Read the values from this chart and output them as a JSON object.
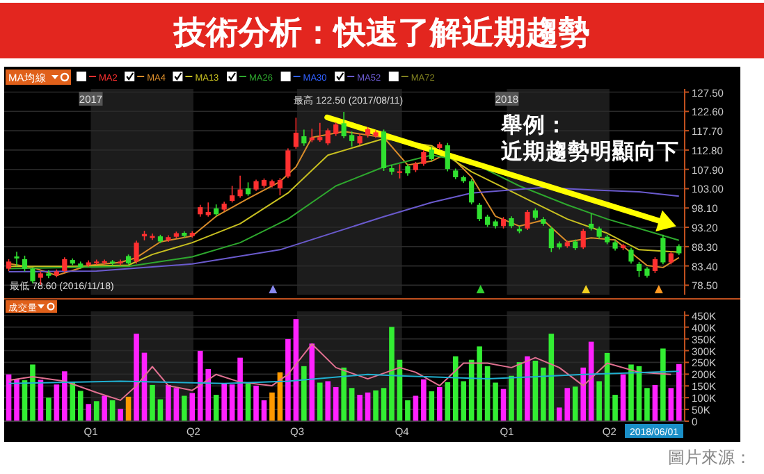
{
  "chart_data": [
    {
      "type": "candlestick",
      "title": "技術分析：快速了解近期趨勢",
      "legend": "top left",
      "grid": "y",
      "tick_labels": "y",
      "xlim": [
        "2016-10-17",
        "2018-06-06"
      ],
      "ylim": [
        76.1,
        128.3
      ],
      "yticks": [
        {
          "value": 127.5,
          "label": "127.50"
        },
        {
          "value": 122.6,
          "label": "122.60"
        },
        {
          "value": 117.7,
          "label": "117.70"
        },
        {
          "value": 112.8,
          "label": "112.80"
        },
        {
          "value": 107.9,
          "label": "107.90"
        },
        {
          "value": 103,
          "label": "103.00"
        },
        {
          "value": 98.1,
          "label": "98.10"
        },
        {
          "value": 93.2,
          "label": "93.20"
        },
        {
          "value": 88.3,
          "label": "88.30"
        },
        {
          "value": 83.4,
          "label": "83.40"
        },
        {
          "value": 78.5,
          "label": "78.50"
        }
      ],
      "x2lim": [
        "2016-10-17",
        "2018-06-06"
      ],
      "x2ticks": [
        {
          "value": "2017-01-01",
          "label": "2017"
        },
        {
          "value": "2018-01-01",
          "label": "2018"
        }
      ],
      "bands": [
        {
          "axis": "x",
          "from": "2017-01-01",
          "to": "2017-04-01",
          "color": "#1c1c1c"
        },
        {
          "axis": "x",
          "from": "2017-07-01",
          "to": "2017-10-01",
          "color": "#1c1c1c"
        },
        {
          "axis": "x",
          "from": "2018-01-01",
          "to": "2018-04-01",
          "color": "#1c1c1c"
        }
      ],
      "x": [
        "2016-10-21",
        "2016-10-28",
        "2016-11-04",
        "2016-11-11",
        "2016-11-18",
        "2016-11-25",
        "2016-12-02",
        "2016-12-09",
        "2016-12-16",
        "2016-12-23",
        "2016-12-30",
        "2017-01-06",
        "2017-01-13",
        "2017-01-20",
        "2017-01-27",
        "2017-02-03",
        "2017-02-10",
        "2017-02-17",
        "2017-02-24",
        "2017-03-03",
        "2017-03-10",
        "2017-03-17",
        "2017-03-24",
        "2017-03-31",
        "2017-04-07",
        "2017-04-14",
        "2017-04-21",
        "2017-04-28",
        "2017-05-05",
        "2017-05-12",
        "2017-05-19",
        "2017-05-26",
        "2017-06-02",
        "2017-06-09",
        "2017-06-16",
        "2017-06-23",
        "2017-06-30",
        "2017-07-07",
        "2017-07-14",
        "2017-07-21",
        "2017-07-28",
        "2017-08-04",
        "2017-08-11",
        "2017-08-18",
        "2017-08-25",
        "2017-09-01",
        "2017-09-08",
        "2017-09-15",
        "2017-09-22",
        "2017-09-29",
        "2017-10-06",
        "2017-10-13",
        "2017-10-20",
        "2017-10-27",
        "2017-11-03",
        "2017-11-10",
        "2017-11-17",
        "2017-11-24",
        "2017-12-01",
        "2017-12-08",
        "2017-12-15",
        "2017-12-22",
        "2017-12-29",
        "2018-01-05",
        "2018-01-12",
        "2018-01-19",
        "2018-01-26",
        "2018-02-02",
        "2018-02-09",
        "2018-02-16",
        "2018-02-23",
        "2018-03-02",
        "2018-03-09",
        "2018-03-16",
        "2018-03-23",
        "2018-03-30",
        "2018-04-06",
        "2018-04-13",
        "2018-04-20",
        "2018-04-27",
        "2018-05-04",
        "2018-05-11",
        "2018-05-18",
        "2018-05-25",
        "2018-06-01"
      ],
      "ohlc": [
        [
          82.7,
          85.1,
          82.1,
          84.5
        ],
        [
          85.8,
          87.0,
          83.3,
          85.3
        ],
        [
          85.1,
          86.0,
          82.0,
          82.7
        ],
        [
          82.7,
          83.0,
          79.0,
          79.5
        ],
        [
          80.4,
          82.0,
          78.6,
          81.5
        ],
        [
          81.5,
          82.3,
          80.3,
          80.9
        ],
        [
          81.0,
          82.5,
          80.5,
          82.0
        ],
        [
          82.1,
          85.6,
          81.8,
          85.1
        ],
        [
          84.9,
          85.3,
          83.6,
          84.0
        ],
        [
          84.0,
          84.5,
          82.7,
          83.1
        ],
        [
          83.6,
          84.8,
          83.2,
          84.3
        ],
        [
          84.1,
          85.0,
          83.7,
          84.5
        ],
        [
          84.2,
          85.0,
          83.8,
          84.6
        ],
        [
          84.5,
          84.9,
          83.6,
          84.0
        ],
        [
          84.0,
          85.0,
          83.6,
          84.5
        ],
        [
          85.9,
          86.3,
          83.8,
          84.1
        ],
        [
          84.5,
          89.8,
          84.0,
          89.3
        ],
        [
          90.9,
          92.3,
          89.9,
          91.5
        ],
        [
          90.5,
          91.6,
          90.0,
          91.0
        ],
        [
          90.9,
          91.3,
          89.2,
          89.6
        ],
        [
          89.9,
          91.2,
          89.5,
          90.7
        ],
        [
          90.8,
          92.1,
          90.4,
          91.7
        ],
        [
          91.8,
          92.2,
          90.6,
          91.0
        ],
        [
          91.0,
          92.2,
          90.6,
          91.8
        ],
        [
          96.5,
          98.9,
          95.9,
          98.3
        ],
        [
          96.3,
          99.5,
          95.9,
          97.1
        ],
        [
          98.0,
          99.0,
          96.0,
          96.5
        ],
        [
          97.7,
          99.7,
          97.3,
          99.2
        ],
        [
          99.9,
          103.7,
          99.5,
          101.3
        ],
        [
          101.1,
          106.3,
          100.7,
          102.8
        ],
        [
          103.1,
          104.6,
          101.2,
          101.6
        ],
        [
          102.8,
          105.3,
          102.4,
          104.9
        ],
        [
          103.7,
          105.6,
          103.2,
          105.2
        ],
        [
          103.7,
          105.3,
          103.3,
          104.9
        ],
        [
          103.1,
          105.7,
          101.3,
          105.2
        ],
        [
          106.1,
          113.2,
          105.7,
          112.7
        ],
        [
          113.6,
          121.0,
          113.1,
          117.2
        ],
        [
          116.3,
          118.0,
          113.9,
          114.5
        ],
        [
          115.3,
          118.2,
          114.8,
          116.0
        ],
        [
          115.3,
          119.7,
          114.9,
          116.1
        ],
        [
          114.5,
          118.3,
          114.0,
          117.8
        ],
        [
          116.9,
          119.8,
          116.4,
          119.3
        ],
        [
          119.6,
          122.5,
          115.8,
          116.3
        ],
        [
          116.6,
          117.5,
          113.7,
          115.1
        ],
        [
          114.5,
          117.0,
          114.0,
          116.3
        ],
        [
          116.7,
          118.6,
          116.0,
          118.1
        ],
        [
          116.3,
          117.8,
          115.9,
          117.3
        ],
        [
          117.5,
          118.0,
          107.5,
          108.2
        ],
        [
          108.2,
          109.0,
          106.5,
          107.3
        ],
        [
          107.0,
          109.2,
          105.6,
          107.4
        ],
        [
          108.7,
          109.2,
          106.3,
          106.9
        ],
        [
          107.7,
          109.8,
          107.2,
          109.3
        ],
        [
          109.3,
          112.8,
          108.8,
          112.3
        ],
        [
          112.9,
          113.5,
          110.0,
          110.5
        ],
        [
          113.3,
          114.8,
          112.9,
          114.3
        ],
        [
          114.0,
          114.6,
          107.4,
          108.0
        ],
        [
          107.6,
          108.1,
          105.4,
          105.9
        ],
        [
          105.9,
          106.3,
          104.5,
          104.9
        ],
        [
          104.9,
          105.4,
          99.0,
          99.5
        ],
        [
          98.9,
          99.4,
          94.8,
          95.3
        ],
        [
          95.9,
          96.4,
          93.3,
          93.8
        ],
        [
          94.7,
          95.2,
          92.9,
          93.5
        ],
        [
          93.5,
          95.8,
          92.9,
          95.3
        ],
        [
          95.5,
          96.0,
          93.0,
          93.5
        ],
        [
          92.8,
          93.6,
          91.7,
          92.2
        ],
        [
          92.9,
          97.6,
          92.5,
          97.1
        ],
        [
          97.5,
          98.0,
          95.1,
          95.6
        ],
        [
          95.3,
          95.8,
          93.6,
          94.1
        ],
        [
          92.9,
          93.4,
          86.9,
          87.9
        ],
        [
          89.1,
          89.6,
          87.6,
          88.1
        ],
        [
          88.4,
          89.8,
          88.0,
          89.4
        ],
        [
          89.6,
          90.1,
          87.4,
          87.9
        ],
        [
          88.1,
          92.8,
          87.7,
          92.3
        ],
        [
          94.1,
          96.7,
          92.4,
          92.9
        ],
        [
          92.9,
          93.4,
          90.3,
          90.8
        ],
        [
          90.8,
          91.3,
          88.9,
          89.4
        ],
        [
          89.4,
          89.9,
          87.3,
          87.8
        ],
        [
          87.9,
          89.0,
          87.4,
          88.6
        ],
        [
          87.5,
          88.0,
          84.0,
          84.5
        ],
        [
          83.9,
          84.4,
          80.6,
          82.1
        ],
        [
          82.7,
          83.1,
          80.4,
          80.9
        ],
        [
          82.1,
          85.6,
          81.6,
          85.1
        ],
        [
          90.5,
          91.3,
          83.8,
          84.3
        ],
        [
          84.3,
          87.1,
          83.8,
          86.6
        ],
        [
          88.4,
          88.9,
          86.2,
          86.6
        ]
      ],
      "colors": [
        "#ff3030",
        "#30e030",
        "#30e030",
        "#30e030",
        "#ff3030",
        "#30e030",
        "#ff3030",
        "#ff3030",
        "#30e030",
        "#30e030",
        "#ff3030",
        "#ff3030",
        "#ff3030",
        "#30e030",
        "#ff3030",
        "#30e030",
        "#ff3030",
        "#ff3030",
        "#ff3030",
        "#30e030",
        "#ff3030",
        "#ff3030",
        "#30e030",
        "#ff3030",
        "#ff3030",
        "#ff3030",
        "#30e030",
        "#ff3030",
        "#ff3030",
        "#ff3030",
        "#30e030",
        "#ff3030",
        "#ff3030",
        "#ff3030",
        "#ff3030",
        "#ff3030",
        "#ff3030",
        "#30e030",
        "#ff3030",
        "#ff3030",
        "#ff3030",
        "#ff3030",
        "#30e030",
        "#30e030",
        "#ff3030",
        "#ff3030",
        "#ff3030",
        "#30e030",
        "#30e030",
        "#ff3030",
        "#30e030",
        "#ff3030",
        "#ff3030",
        "#30e030",
        "#ff3030",
        "#30e030",
        "#30e030",
        "#30e030",
        "#30e030",
        "#30e030",
        "#30e030",
        "#30e030",
        "#ff3030",
        "#30e030",
        "#30e030",
        "#ff3030",
        "#30e030",
        "#30e030",
        "#30e030",
        "#30e030",
        "#ff3030",
        "#30e030",
        "#ff3030",
        "#30e030",
        "#30e030",
        "#30e030",
        "#30e030",
        "#ff3030",
        "#30e030",
        "#30e030",
        "#30e030",
        "#ff3030",
        "#30e030",
        "#ff3030",
        "#30e030"
      ],
      "legend_title": "MA均線",
      "series": [
        {
          "type": "line",
          "name": "MA2",
          "color": "#ff3030",
          "values": [
            null,
            null,
            null,
            null,
            null,
            null,
            null,
            null,
            null,
            null,
            null,
            null,
            null,
            null,
            null,
            null,
            null,
            null,
            null,
            null,
            null,
            null,
            null,
            null,
            null,
            null,
            null,
            null,
            null,
            null,
            null,
            null,
            null,
            null,
            null,
            null,
            null,
            null,
            null,
            null,
            null,
            null,
            null,
            null,
            null,
            null,
            null,
            null,
            null,
            null,
            null,
            null,
            null,
            null,
            null,
            null,
            null,
            null,
            null,
            null,
            null,
            null,
            null,
            null,
            null,
            null,
            null,
            null,
            null,
            null,
            null,
            null,
            null,
            null,
            null,
            null,
            null,
            null,
            null,
            null,
            null,
            null,
            null,
            null,
            null
          ]
        },
        {
          "type": "line",
          "name": "MA4",
          "color": "#d98c2a",
          "x": [
            "2016-10-21",
            "2016-11-11",
            "2016-12-02",
            "2016-12-30",
            "2017-01-27",
            "2017-02-10",
            "2017-03-03",
            "2017-03-31",
            "2017-04-21",
            "2017-05-19",
            "2017-06-16",
            "2017-06-30",
            "2017-07-14",
            "2017-08-11",
            "2017-09-15",
            "2017-10-06",
            "2017-10-27",
            "2017-11-10",
            "2017-12-01",
            "2017-12-22",
            "2018-01-12",
            "2018-02-02",
            "2018-02-23",
            "2018-03-16",
            "2018-04-06",
            "2018-05-04",
            "2018-05-18",
            "2018-06-01"
          ],
          "values": [
            84,
            83,
            81,
            83.5,
            84.3,
            85.5,
            89.5,
            91,
            96,
            100.5,
            104.8,
            108.5,
            116,
            117.5,
            116,
            109,
            110,
            112,
            106,
            96,
            93.5,
            95,
            89.5,
            90.5,
            90,
            83.5,
            83,
            85.5
          ]
        },
        {
          "type": "line",
          "name": "MA13",
          "color": "#c8c020",
          "x": [
            "2016-10-21",
            "2016-12-16",
            "2017-02-03",
            "2017-02-24",
            "2017-03-31",
            "2017-05-12",
            "2017-06-23",
            "2017-07-28",
            "2017-09-15",
            "2017-10-27",
            "2017-12-01",
            "2018-01-12",
            "2018-02-23",
            "2018-03-30",
            "2018-04-27",
            "2018-06-01"
          ],
          "values": [
            83.3,
            83.3,
            83.6,
            86.3,
            89.3,
            94.1,
            101.9,
            111.5,
            115.7,
            113.9,
            107.3,
            101.3,
            95.3,
            91.7,
            87.5,
            86.9
          ]
        },
        {
          "type": "line",
          "name": "MA26",
          "color": "#2ea82e",
          "x": [
            "2016-10-21",
            "2017-02-03",
            "2017-03-31",
            "2017-05-12",
            "2017-06-23",
            "2017-08-04",
            "2017-09-15",
            "2017-10-27",
            "2017-12-01",
            "2018-01-12",
            "2018-02-23",
            "2018-03-30",
            "2018-05-11",
            "2018-06-01"
          ],
          "values": [
            82.7,
            83.3,
            85.7,
            89.3,
            95.3,
            103.7,
            108.5,
            111.5,
            109.7,
            103.7,
            98.9,
            95.3,
            91.7,
            89.9
          ]
        },
        {
          "type": "line",
          "name": "MA30",
          "color": "#3060ff",
          "values": [
            null,
            null,
            null,
            null,
            null,
            null,
            null,
            null,
            null,
            null,
            null,
            null,
            null,
            null,
            null,
            null,
            null,
            null,
            null,
            null,
            null,
            null,
            null,
            null,
            null,
            null,
            null,
            null,
            null,
            null,
            null,
            null,
            null,
            null,
            null,
            null,
            null,
            null,
            null,
            null,
            null,
            null,
            null,
            null,
            null,
            null,
            null,
            null,
            null,
            null,
            null,
            null,
            null,
            null,
            null,
            null,
            null,
            null,
            null,
            null,
            null,
            null,
            null,
            null,
            null,
            null,
            null,
            null,
            null,
            null,
            null,
            null,
            null,
            null,
            null,
            null,
            null,
            null,
            null,
            null,
            null,
            null,
            null,
            null,
            null
          ]
        },
        {
          "type": "line",
          "name": "MA52",
          "color": "#6a5acd",
          "x": [
            "2016-10-21",
            "2017-01-06",
            "2017-03-31",
            "2017-06-16",
            "2017-09-15",
            "2017-10-27",
            "2017-12-01",
            "2018-02-02",
            "2018-03-16",
            "2018-04-27",
            "2018-06-01"
          ],
          "values": [
            81.9,
            82.1,
            83.9,
            87.5,
            95.9,
            99.5,
            101.9,
            103.3,
            102.7,
            102.2,
            101.1
          ]
        },
        {
          "type": "line",
          "name": "MA72",
          "color": "#808020",
          "values": [
            null,
            null,
            null,
            null,
            null,
            null,
            null,
            null,
            null,
            null,
            null,
            null,
            null,
            null,
            null,
            null,
            null,
            null,
            null,
            null,
            null,
            null,
            null,
            null,
            null,
            null,
            null,
            null,
            null,
            null,
            null,
            null,
            null,
            null,
            null,
            null,
            null,
            null,
            null,
            null,
            null,
            null,
            null,
            null,
            null,
            null,
            null,
            null,
            null,
            null,
            null,
            null,
            null,
            null,
            null,
            null,
            null,
            null,
            null,
            null,
            null,
            null,
            null,
            null,
            null,
            null,
            null,
            null,
            null,
            null,
            null,
            null,
            null,
            null,
            null,
            null,
            null,
            null,
            null,
            null,
            null,
            null,
            null,
            null,
            null
          ]
        }
      ],
      "annotations": [
        {
          "text": "最高 122.50 (2017/08/11)",
          "x": "2017-08-11",
          "y": 122.5
        },
        {
          "text": "最低 78.60 (2016/11/18)",
          "x": "2016-11-18",
          "y": 78.6
        },
        "舉例：",
        "近期趨勢明顯向下"
      ]
    },
    {
      "type": "bar",
      "ylabel": "成交量",
      "grid": "y",
      "xlim": [
        "2016-10-17",
        "2018-06-06"
      ],
      "xticks": [
        {
          "value": "2017-01-01",
          "label": "Q1"
        },
        {
          "value": "2017-04-01",
          "label": "Q2"
        },
        {
          "value": "2017-07-01",
          "label": "Q3"
        },
        {
          "value": "2017-10-01",
          "label": "Q4"
        },
        {
          "value": "2018-01-01",
          "label": "Q1"
        },
        {
          "value": "2018-04-01",
          "label": "Q2"
        }
      ],
      "ylim": [
        0,
        467000
      ],
      "yticks": [
        {
          "value": 0,
          "label": "0"
        },
        {
          "value": 50000,
          "label": "50K"
        },
        {
          "value": 100000,
          "label": "100K"
        },
        {
          "value": 150000,
          "label": "150K"
        },
        {
          "value": 200000,
          "label": "200K"
        },
        {
          "value": 250000,
          "label": "250K"
        },
        {
          "value": 300000,
          "label": "300K"
        },
        {
          "value": 350000,
          "label": "350K"
        },
        {
          "value": 400000,
          "label": "400K"
        },
        {
          "value": 450000,
          "label": "450K"
        }
      ],
      "bands": [
        {
          "axis": "x",
          "from": "2017-01-01",
          "to": "2017-04-01",
          "color": "#1c1c1c"
        },
        {
          "axis": "x",
          "from": "2017-07-01",
          "to": "2017-10-01",
          "color": "#1c1c1c"
        },
        {
          "axis": "x",
          "from": "2018-01-01",
          "to": "2018-04-01",
          "color": "#1c1c1c"
        }
      ],
      "x": [
        "2016-10-21",
        "2016-10-28",
        "2016-11-04",
        "2016-11-11",
        "2016-11-18",
        "2016-11-25",
        "2016-12-02",
        "2016-12-09",
        "2016-12-16",
        "2016-12-23",
        "2016-12-30",
        "2017-01-06",
        "2017-01-13",
        "2017-01-20",
        "2017-01-27",
        "2017-02-03",
        "2017-02-10",
        "2017-02-17",
        "2017-02-24",
        "2017-03-03",
        "2017-03-10",
        "2017-03-17",
        "2017-03-24",
        "2017-03-31",
        "2017-04-07",
        "2017-04-14",
        "2017-04-21",
        "2017-04-28",
        "2017-05-05",
        "2017-05-12",
        "2017-05-19",
        "2017-05-26",
        "2017-06-02",
        "2017-06-09",
        "2017-06-16",
        "2017-06-23",
        "2017-06-30",
        "2017-07-07",
        "2017-07-14",
        "2017-07-21",
        "2017-07-28",
        "2017-08-04",
        "2017-08-11",
        "2017-08-18",
        "2017-08-25",
        "2017-09-01",
        "2017-09-08",
        "2017-09-15",
        "2017-09-22",
        "2017-09-29",
        "2017-10-06",
        "2017-10-13",
        "2017-10-20",
        "2017-10-27",
        "2017-11-03",
        "2017-11-10",
        "2017-11-17",
        "2017-11-24",
        "2017-12-01",
        "2017-12-08",
        "2017-12-15",
        "2017-12-22",
        "2017-12-29",
        "2018-01-05",
        "2018-01-12",
        "2018-01-19",
        "2018-01-26",
        "2018-02-02",
        "2018-02-09",
        "2018-02-16",
        "2018-02-23",
        "2018-03-02",
        "2018-03-09",
        "2018-03-16",
        "2018-03-23",
        "2018-03-30",
        "2018-04-06",
        "2018-04-13",
        "2018-04-20",
        "2018-04-27",
        "2018-05-04",
        "2018-05-11",
        "2018-05-18",
        "2018-05-25",
        "2018-06-01"
      ],
      "values": [
        199000,
        180000,
        174000,
        241000,
        176000,
        100000,
        156000,
        212000,
        166000,
        129000,
        73000,
        85000,
        108000,
        89000,
        52000,
        104000,
        372000,
        291000,
        154000,
        93000,
        154000,
        141000,
        108000,
        120000,
        299000,
        222000,
        112000,
        160000,
        156000,
        270000,
        160000,
        151000,
        89000,
        122000,
        208000,
        349000,
        434000,
        234000,
        330000,
        164000,
        170000,
        145000,
        228000,
        141000,
        112000,
        122000,
        131000,
        141000,
        401000,
        261000,
        89000,
        108000,
        178000,
        127000,
        145000,
        166000,
        276000,
        170000,
        261000,
        318000,
        234000,
        164000,
        137000,
        193000,
        251000,
        276000,
        257000,
        228000,
        372000,
        58000,
        141000,
        147000,
        228000,
        338000,
        170000,
        290000,
        112000,
        199000,
        241000,
        234000,
        141000,
        154000,
        309000,
        141000,
        243000
      ],
      "colors": [
        "#ff22ff",
        "#ff22ff",
        "#33ee33",
        "#33ee33",
        "#ff22ff",
        "#33ee33",
        "#ff22ff",
        "#ff22ff",
        "#33ee33",
        "#33ee33",
        "#ff22ff",
        "#33ee33",
        "#ff22ff",
        "#33ee33",
        "#ff22ff",
        "#ff9900",
        "#ff22ff",
        "#ff22ff",
        "#33ee33",
        "#33ee33",
        "#ff22ff",
        "#ff22ff",
        "#33ee33",
        "#ff22ff",
        "#ff22ff",
        "#ff22ff",
        "#33ee33",
        "#ff22ff",
        "#ff22ff",
        "#ff22ff",
        "#33ee33",
        "#ff22ff",
        "#ff22ff",
        "#ff9900",
        "#ff9900",
        "#ff22ff",
        "#ff22ff",
        "#33ee33",
        "#ff22ff",
        "#33ee33",
        "#ff22ff",
        "#ff22ff",
        "#33ee33",
        "#33ee33",
        "#ff22ff",
        "#ff22ff",
        "#33ee33",
        "#33ee33",
        "#33ee33",
        "#33ee33",
        "#33ee33",
        "#ff22ff",
        "#ff22ff",
        "#33ee33",
        "#ff22ff",
        "#33ee33",
        "#33ee33",
        "#33ee33",
        "#33ee33",
        "#33ee33",
        "#33ee33",
        "#33ee33",
        "#ff22ff",
        "#33ee33",
        "#33ee33",
        "#ff22ff",
        "#33ee33",
        "#33ee33",
        "#33ee33",
        "#ff22ff",
        "#ff22ff",
        "#33ee33",
        "#ff22ff",
        "#ff22ff",
        "#33ee33",
        "#33ee33",
        "#33ee33",
        "#ff22ff",
        "#33ee33",
        "#33ee33",
        "#33ee33",
        "#ff22ff",
        "#33ee33",
        "#ff22ff",
        "#ff22ff"
      ],
      "series": [
        {
          "type": "line",
          "color": "#e07090",
          "x": [
            "2016-10-21",
            "2016-11-11",
            "2016-12-09",
            "2017-01-06",
            "2017-01-27",
            "2017-02-10",
            "2017-02-24",
            "2017-03-10",
            "2017-03-31",
            "2017-04-21",
            "2017-05-12",
            "2017-06-09",
            "2017-06-23",
            "2017-07-14",
            "2017-08-04",
            "2017-09-01",
            "2017-09-29",
            "2017-10-13",
            "2017-11-03",
            "2017-11-24",
            "2017-12-15",
            "2018-01-05",
            "2018-01-26",
            "2018-02-16",
            "2018-03-09",
            "2018-03-30",
            "2018-04-27",
            "2018-05-25"
          ],
          "values": [
            174000,
            189000,
            170000,
            122000,
            89000,
            151000,
            232000,
            151000,
            131000,
            199000,
            166000,
            151000,
            199000,
            328000,
            228000,
            180000,
            228000,
            208000,
            151000,
            247000,
            247000,
            228000,
            270000,
            228000,
            151000,
            247000,
            208000,
            199000
          ]
        },
        {
          "type": "line",
          "color": "#20b0d0",
          "x": [
            "2016-10-21",
            "2017-01-27",
            "2017-04-28",
            "2017-06-23",
            "2017-09-01",
            "2017-09-29",
            "2017-12-15",
            "2018-01-26",
            "2018-03-09",
            "2018-06-01"
          ],
          "values": [
            160000,
            170000,
            160000,
            170000,
            199000,
            193000,
            180000,
            189000,
            199000,
            212000
          ]
        }
      ],
      "annotations": [
        "2018/06/01",
        "圖片來源："
      ]
    }
  ]
}
